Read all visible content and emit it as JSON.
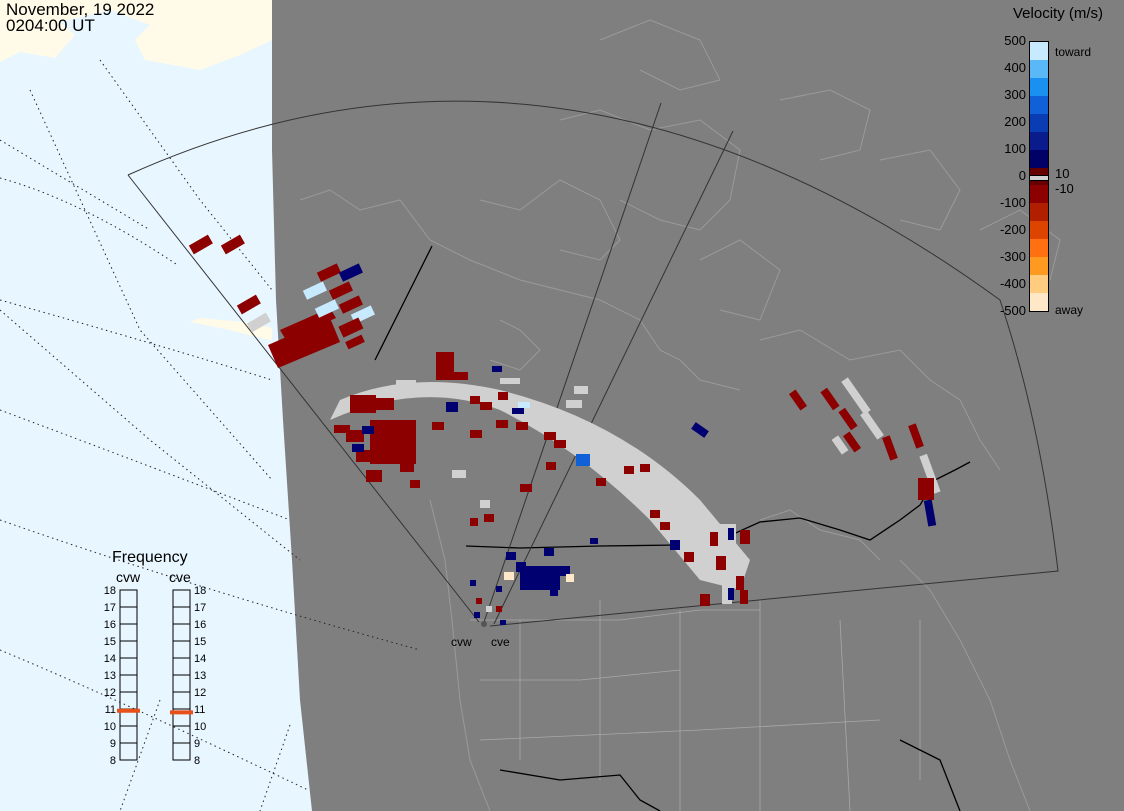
{
  "header": {
    "date": "November, 19 2022",
    "time": "0204:00 UT"
  },
  "velocity_scale": {
    "title": "Velocity (m/s)",
    "ticks": [
      "500",
      "400",
      "300",
      "200",
      "100",
      "0",
      "-100",
      "-200",
      "-300",
      "-400",
      "-500"
    ],
    "inner_ticks": [
      "10",
      "-10"
    ],
    "toward_label": "toward",
    "away_label": "away",
    "colors": [
      "#ffe8c8",
      "#ffcc80",
      "#ff9a20",
      "#ff7010",
      "#dd4400",
      "#b02000",
      "#8c0000",
      "#660000",
      "#000066",
      "#0a1c8c",
      "#0a3cb4",
      "#1060d8",
      "#1a90f0",
      "#5ab8f8",
      "#c8eaff"
    ]
  },
  "frequency_panel": {
    "title": "Frequency",
    "radars": [
      {
        "name": "cvw",
        "value_mhz": 10.9
      },
      {
        "name": "cve",
        "value_mhz": 10.8
      }
    ],
    "ticks": [
      "18",
      "17",
      "16",
      "15",
      "14",
      "13",
      "12",
      "11",
      "10",
      "9",
      "8"
    ]
  },
  "map": {
    "radar_site_labels": [
      "cvw",
      "cve"
    ],
    "colors": {
      "land_night": "#7f7f7f",
      "ocean_day": "#e8f6ff",
      "land_day": "#fffbe8",
      "ground_scatter": "#d0d0d0",
      "grid_dots": "#1c1c1c"
    }
  }
}
